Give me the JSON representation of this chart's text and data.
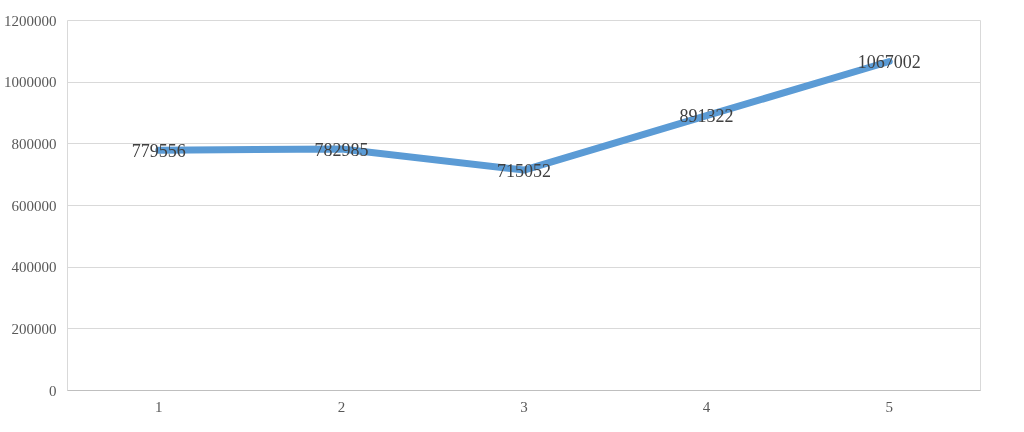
{
  "chart_data": {
    "type": "line",
    "categories": [
      "1",
      "2",
      "3",
      "4",
      "5"
    ],
    "series": [
      {
        "color": "#5b9bd5",
        "values": [
          779556,
          782985,
          715052,
          891322,
          1067002
        ]
      }
    ],
    "ylim": [
      0,
      1200000
    ],
    "yticks": [
      0,
      200000,
      400000,
      600000,
      800000,
      1000000,
      1200000
    ],
    "grid": "y",
    "data_labels": true,
    "marker": "none",
    "line_style": "solid"
  }
}
